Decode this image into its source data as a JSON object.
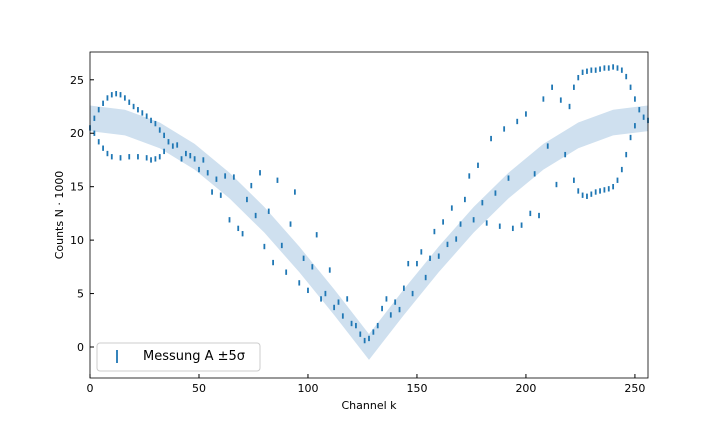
{
  "chart_data": {
    "type": "errorbar",
    "xlabel": "Channel k",
    "ylabel": "Counts N · 1000",
    "xlim": [
      0,
      256
    ],
    "ylim": [
      -2.9,
      27.6
    ],
    "xticks": [
      0,
      50,
      100,
      150,
      200,
      250
    ],
    "yticks": [
      0,
      5,
      10,
      15,
      20,
      25
    ],
    "legend": "lower left",
    "ticks_direction": "in",
    "band": {
      "color": "#cfe0ef",
      "x": [
        0,
        16,
        32,
        48,
        64,
        80,
        96,
        112,
        128,
        144,
        160,
        176,
        192,
        208,
        224,
        240,
        256
      ],
      "lower": [
        20.2,
        19.8,
        18.6,
        16.6,
        13.9,
        10.7,
        7.0,
        3.0,
        -1.2,
        3.0,
        7.0,
        10.7,
        13.9,
        16.6,
        18.6,
        19.8,
        20.2
      ],
      "upper": [
        22.6,
        22.2,
        21.0,
        19.0,
        16.3,
        13.1,
        9.4,
        5.4,
        1.2,
        5.4,
        9.4,
        13.1,
        16.3,
        19.0,
        21.0,
        22.2,
        22.6
      ]
    },
    "series": [
      {
        "name": "Messung A ±5σ",
        "color": "#1f77b4",
        "yerr": 0.25,
        "x": [
          0,
          2,
          4,
          6,
          8,
          10,
          12,
          14,
          16,
          18,
          20,
          22,
          24,
          26,
          28,
          30,
          32,
          34,
          2,
          4,
          6,
          8,
          10,
          14,
          18,
          22,
          26,
          28,
          30,
          32,
          34,
          36,
          38,
          40,
          42,
          44,
          46,
          48,
          50,
          52,
          54,
          56,
          58,
          60,
          62,
          64,
          66,
          68,
          70,
          72,
          74,
          76,
          78,
          80,
          82,
          84,
          86,
          88,
          90,
          92,
          94,
          96,
          98,
          100,
          102,
          104,
          106,
          108,
          110,
          112,
          114,
          116,
          118,
          120,
          122,
          124,
          126,
          128,
          130,
          132,
          134,
          136,
          138,
          140,
          142,
          144,
          146,
          148,
          150,
          152,
          154,
          156,
          158,
          160,
          162,
          164,
          166,
          168,
          170,
          172,
          174,
          176,
          178,
          180,
          182,
          184,
          186,
          188,
          190,
          192,
          194,
          196,
          198,
          200,
          202,
          204,
          206,
          208,
          210,
          212,
          214,
          216,
          218,
          220,
          222,
          224,
          226,
          228,
          230,
          232,
          234,
          236,
          238,
          240,
          242,
          244,
          246,
          248,
          250,
          252,
          254,
          256,
          222,
          224,
          226,
          228,
          230,
          232,
          234,
          236,
          238,
          240,
          242,
          244,
          246,
          248,
          250
        ],
        "values": [
          20.5,
          21.4,
          22.2,
          22.8,
          23.3,
          23.6,
          23.7,
          23.6,
          23.3,
          22.9,
          22.5,
          22.2,
          21.9,
          21.6,
          21.2,
          20.9,
          20.3,
          19.8,
          20.0,
          19.2,
          18.6,
          18.1,
          17.8,
          17.7,
          17.8,
          17.8,
          17.7,
          17.5,
          17.6,
          17.8,
          18.3,
          19.2,
          18.8,
          18.9,
          17.6,
          18.1,
          17.9,
          17.6,
          16.6,
          17.5,
          16.3,
          14.5,
          15.7,
          14.2,
          16.0,
          11.9,
          15.9,
          11.1,
          10.6,
          13.8,
          15.1,
          12.3,
          16.3,
          9.4,
          12.7,
          7.9,
          15.6,
          9.5,
          7.0,
          11.5,
          14.5,
          6.0,
          8.3,
          5.3,
          7.5,
          10.5,
          4.5,
          5.0,
          7.2,
          3.7,
          4.2,
          2.9,
          4.5,
          2.2,
          2.0,
          1.2,
          0.6,
          0.8,
          1.4,
          2.0,
          3.6,
          4.5,
          3.0,
          4.2,
          3.5,
          5.5,
          7.8,
          5.0,
          7.8,
          8.9,
          6.5,
          8.3,
          10.8,
          8.5,
          11.7,
          9.6,
          13.0,
          10.1,
          11.5,
          13.8,
          16.0,
          11.9,
          17.0,
          13.5,
          11.6,
          19.5,
          14.4,
          11.3,
          20.4,
          15.8,
          11.1,
          21.1,
          11.4,
          21.8,
          12.5,
          16.2,
          12.3,
          23.2,
          18.8,
          24.3,
          15.2,
          23.1,
          18.0,
          22.5,
          24.3,
          25.2,
          25.7,
          25.8,
          25.9,
          25.9,
          26.0,
          26.1,
          26.1,
          26.2,
          26.1,
          25.9,
          25.3,
          24.3,
          23.2,
          22.2,
          21.5,
          21.2,
          15.6,
          14.6,
          14.2,
          14.1,
          14.3,
          14.5,
          14.6,
          14.7,
          14.8,
          15.0,
          15.6,
          16.6,
          18.0,
          19.6,
          20.7
        ]
      }
    ]
  }
}
